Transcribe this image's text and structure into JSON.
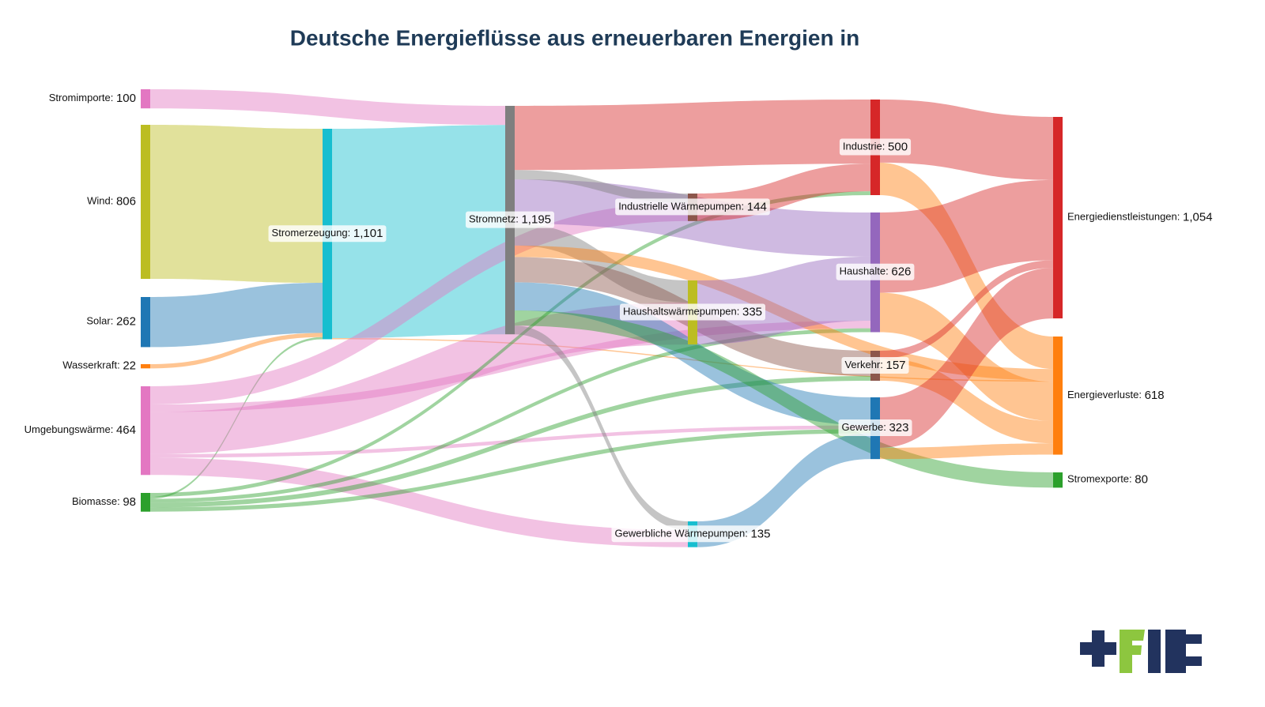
{
  "chart_data": {
    "type": "sankey",
    "title": "Deutsche Energieflüsse aus erneuerbaren Energien in",
    "separator": ": ",
    "nodes": [
      {
        "name": "Stromimporte",
        "value": 100,
        "color": "#e377c2"
      },
      {
        "name": "Wind",
        "value": 806,
        "color": "#bcbd22"
      },
      {
        "name": "Solar",
        "value": 262,
        "color": "#1f77b4"
      },
      {
        "name": "Wasserkraft",
        "value": 22,
        "color": "#ff7f0e"
      },
      {
        "name": "Umgebungswärme",
        "value": 464,
        "color": "#e377c2"
      },
      {
        "name": "Biomasse",
        "value": 98,
        "color": "#2ca02c"
      },
      {
        "name": "Stromerzeugung",
        "value": 1101,
        "value_label": "1,101",
        "color": "#17becf"
      },
      {
        "name": "Stromnetz",
        "value": 1195,
        "value_label": "1,195",
        "color": "#7f7f7f"
      },
      {
        "name": "Industrielle Wärmepumpen",
        "value": 144,
        "color": "#8c564b"
      },
      {
        "name": "Haushaltswärmepumpen",
        "value": 335,
        "color": "#bcbd22"
      },
      {
        "name": "Gewerbliche Wärmepumpen",
        "value": 135,
        "color": "#17becf"
      },
      {
        "name": "Industrie",
        "value": 500,
        "color": "#d62728"
      },
      {
        "name": "Haushalte",
        "value": 626,
        "color": "#9467bd"
      },
      {
        "name": "Verkehr",
        "value": 157,
        "color": "#8c564b"
      },
      {
        "name": "Gewerbe",
        "value": 323,
        "color": "#1f77b4"
      },
      {
        "name": "Energiedienstleistungen",
        "value": 1054,
        "value_label": "1,054",
        "color": "#d62728"
      },
      {
        "name": "Energieverluste",
        "value": 618,
        "color": "#ff7f0e"
      },
      {
        "name": "Stromexporte",
        "value": 80,
        "color": "#2ca02c"
      }
    ],
    "links": [
      {
        "source": 0,
        "target": 7,
        "value": 100,
        "color": "#e377c2"
      },
      {
        "source": 1,
        "target": 6,
        "value": 806,
        "color": "#bcbd22"
      },
      {
        "source": 2,
        "target": 6,
        "value": 262,
        "color": "#1f77b4"
      },
      {
        "source": 3,
        "target": 6,
        "value": 22,
        "color": "#ff7f0e"
      },
      {
        "source": 5,
        "target": 6,
        "value": 11,
        "color": "#2ca02c"
      },
      {
        "source": 6,
        "target": 7,
        "value": 1095,
        "color": "#17becf"
      },
      {
        "source": 6,
        "target": 16,
        "value": 6,
        "color": "#ff7f0e"
      },
      {
        "source": 4,
        "target": 8,
        "value": 95,
        "color": "#e377c2"
      },
      {
        "source": 4,
        "target": 9,
        "value": 220,
        "color": "#e377c2"
      },
      {
        "source": 4,
        "target": 10,
        "value": 90,
        "color": "#e377c2"
      },
      {
        "source": 4,
        "target": 12,
        "value": 40,
        "color": "#e377c2"
      },
      {
        "source": 4,
        "target": 14,
        "value": 19,
        "color": "#e377c2"
      },
      {
        "source": 5,
        "target": 11,
        "value": 20,
        "color": "#2ca02c"
      },
      {
        "source": 5,
        "target": 12,
        "value": 20,
        "color": "#2ca02c"
      },
      {
        "source": 5,
        "target": 13,
        "value": 25,
        "color": "#2ca02c"
      },
      {
        "source": 5,
        "target": 14,
        "value": 22,
        "color": "#2ca02c"
      },
      {
        "source": 7,
        "target": 11,
        "value": 336,
        "color": "#d62728"
      },
      {
        "source": 7,
        "target": 12,
        "value": 231,
        "color": "#9467bd"
      },
      {
        "source": 7,
        "target": 8,
        "value": 49,
        "color": "#7f7f7f"
      },
      {
        "source": 7,
        "target": 9,
        "value": 115,
        "color": "#7f7f7f"
      },
      {
        "source": 7,
        "target": 10,
        "value": 45,
        "color": "#7f7f7f"
      },
      {
        "source": 7,
        "target": 13,
        "value": 132,
        "color": "#8c564b"
      },
      {
        "source": 7,
        "target": 14,
        "value": 147,
        "color": "#1f77b4"
      },
      {
        "source": 7,
        "target": 17,
        "value": 80,
        "color": "#2ca02c"
      },
      {
        "source": 7,
        "target": 16,
        "value": 60,
        "color": "#ff7f0e"
      },
      {
        "source": 8,
        "target": 11,
        "value": 144,
        "color": "#d62728"
      },
      {
        "source": 9,
        "target": 12,
        "value": 335,
        "color": "#9467bd"
      },
      {
        "source": 10,
        "target": 14,
        "value": 135,
        "color": "#1f77b4"
      },
      {
        "source": 11,
        "target": 15,
        "value": 330,
        "color": "#d62728"
      },
      {
        "source": 11,
        "target": 16,
        "value": 170,
        "color": "#ff7f0e"
      },
      {
        "source": 12,
        "target": 15,
        "value": 420,
        "color": "#d62728"
      },
      {
        "source": 12,
        "target": 16,
        "value": 206,
        "color": "#ff7f0e"
      },
      {
        "source": 13,
        "target": 15,
        "value": 40,
        "color": "#d62728"
      },
      {
        "source": 13,
        "target": 16,
        "value": 117,
        "color": "#ff7f0e"
      },
      {
        "source": 14,
        "target": 15,
        "value": 264,
        "color": "#d62728"
      },
      {
        "source": 14,
        "target": 16,
        "value": 59,
        "color": "#ff7f0e"
      }
    ]
  }
}
